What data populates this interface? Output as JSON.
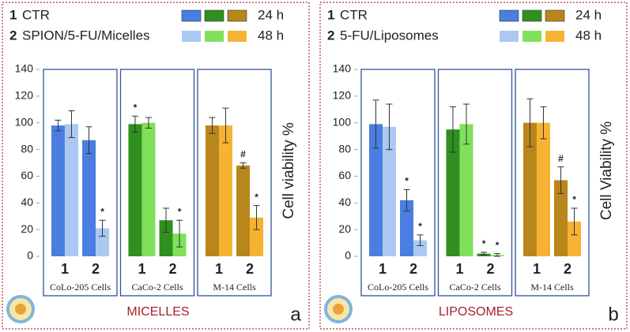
{
  "chart_data": [
    {
      "type": "bar",
      "treatments": [
        {
          "number": 1,
          "label": "CTR"
        },
        {
          "number": 2,
          "label": "SPION/5-FU/Micelles"
        }
      ],
      "groups": [
        "CoLo-205 Cells",
        "CaCo-2 Cells",
        "M-14 Cells"
      ],
      "categories": [
        "1",
        "2",
        "1",
        "2",
        "1",
        "2"
      ],
      "series": [
        {
          "name": "24 h",
          "colors": [
            "#4a7ee0",
            "#2f8f1f",
            "#b8861a"
          ],
          "values": [
            98,
            87,
            99,
            27,
            98,
            68
          ],
          "errors": [
            4,
            10,
            6,
            9,
            6,
            2
          ],
          "markers": [
            null,
            null,
            "*",
            null,
            null,
            "#"
          ]
        },
        {
          "name": "48 h",
          "colors": [
            "#aac8f2",
            "#80e05a",
            "#f6b232"
          ],
          "values": [
            99,
            21,
            100,
            17,
            98,
            29
          ],
          "errors": [
            10,
            6,
            4,
            10,
            13,
            9
          ],
          "markers": [
            null,
            "*",
            null,
            "*",
            null,
            "*"
          ]
        }
      ],
      "ylabel": "Cell viability %",
      "ylim": [
        0,
        140
      ],
      "yticks": [
        0,
        20,
        40,
        60,
        80,
        100,
        120,
        140
      ],
      "footer": "MICELLES",
      "panel_label": "a"
    },
    {
      "type": "bar",
      "treatments": [
        {
          "number": 1,
          "label": "CTR"
        },
        {
          "number": 2,
          "label": "5-FU/Liposomes"
        }
      ],
      "groups": [
        "CoLo-205 Cells",
        "CaCo-2 Cells",
        "M-14 Cells"
      ],
      "categories": [
        "1",
        "2",
        "1",
        "2",
        "1",
        "2"
      ],
      "series": [
        {
          "name": "24 h",
          "colors": [
            "#4a7ee0",
            "#2f8f1f",
            "#b8861a"
          ],
          "values": [
            99,
            42,
            95,
            2,
            100,
            57
          ],
          "errors": [
            18,
            8,
            17,
            1,
            18,
            10
          ],
          "markers": [
            null,
            "*",
            null,
            "*",
            null,
            "#"
          ]
        },
        {
          "name": "48 h",
          "colors": [
            "#aac8f2",
            "#80e05a",
            "#f6b232"
          ],
          "values": [
            97,
            12,
            99,
            1,
            100,
            26
          ],
          "errors": [
            17,
            4,
            15,
            1,
            12,
            10
          ],
          "markers": [
            null,
            "*",
            null,
            "*",
            null,
            "*"
          ]
        }
      ],
      "ylabel": "Cell Viability %",
      "ylim": [
        0,
        140
      ],
      "yticks": [
        0,
        20,
        40,
        60,
        80,
        100,
        120,
        140
      ],
      "footer": "LIPOSOMES",
      "panel_label": "b"
    }
  ]
}
